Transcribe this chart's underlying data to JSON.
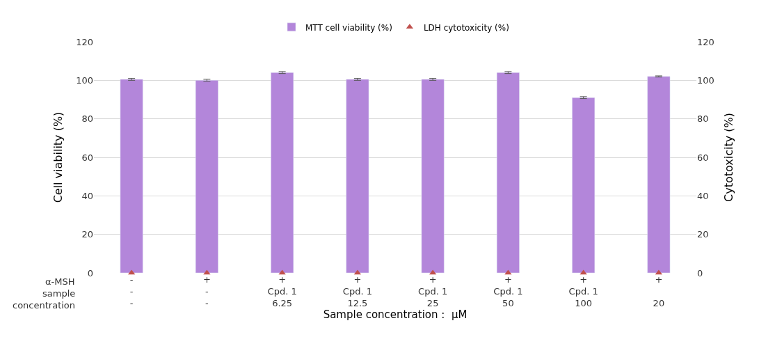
{
  "chart_data": {
    "type": "bar",
    "categories": [
      "-\n-\n-",
      "+\n-\n-",
      "+\nCpd. 1\n6.25",
      "+\nCpd. 1\n12.5",
      "+\nCpd. 1\n25",
      "+\nCpd. 1\n50",
      "+\nCpd. 1\n100",
      "+\n \n20"
    ],
    "series": [
      {
        "name": "MTT cell viability (%)",
        "color": "#b386da",
        "values": [
          100.5,
          100,
          104,
          100.5,
          100.5,
          104,
          91,
          102
        ],
        "errors": [
          0.5,
          0.5,
          0.5,
          0.5,
          0.5,
          0.5,
          0.5,
          0.3
        ]
      },
      {
        "name": "LDH cytotoxicity (%)",
        "type": "scatter",
        "axis": "y2",
        "color": "#c0504d",
        "marker": "triangle",
        "values": [
          0,
          0,
          0,
          0,
          0,
          0,
          0,
          0
        ]
      }
    ],
    "xlabel": "Sample concentration :  μM",
    "ylabel": "Cell viability (%)",
    "y2label": "Cytotoxicity (%)",
    "ylim": [
      0,
      120
    ],
    "yticks": [
      0,
      20,
      40,
      60,
      80,
      100,
      120
    ],
    "y2lim": [
      0,
      120
    ],
    "y2ticks": [
      0,
      20,
      40,
      60,
      80,
      100,
      120
    ],
    "annotations": [
      "α-MSH",
      "sample",
      "concentration"
    ],
    "grid": "y",
    "legend": "top"
  }
}
